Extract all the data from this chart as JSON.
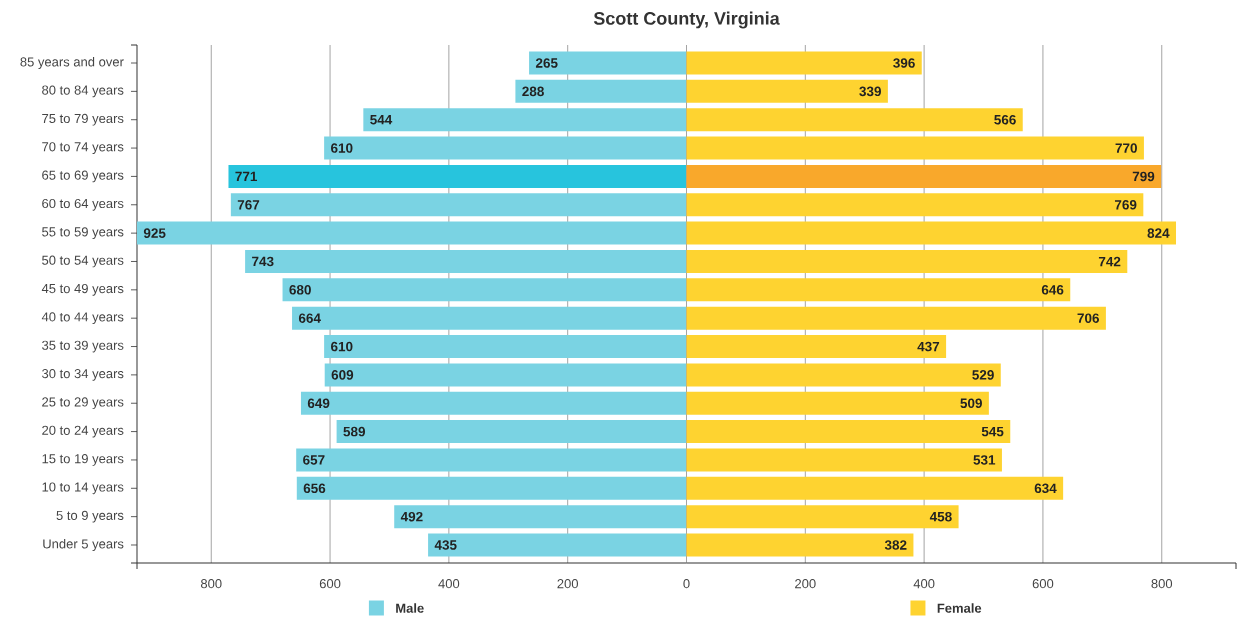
{
  "chart_data": [
    {
      "type": "bar",
      "orientation": "horizontal",
      "title": "Scott County, Virginia",
      "categories": [
        "85 years and over",
        "80 to 84 years",
        "75 to 79 years",
        "70 to 74 years",
        "65 to 69 years",
        "60 to 64 years",
        "55 to 59 years",
        "50 to 54 years",
        "45 to 49 years",
        "40 to 44 years",
        "35 to 39 years",
        "30 to 34 years",
        "25 to 29 years",
        "20 to 24 years",
        "15 to 19 years",
        "10 to 14 years",
        "5 to 9 years",
        "Under 5 years"
      ],
      "series": [
        {
          "name": "Male",
          "color": "#7ad3e3",
          "colors": [
            "#7ad3e3",
            "#7ad3e3",
            "#7ad3e3",
            "#7ad3e3",
            "#27c4dd",
            "#7ad3e3",
            "#7ad3e3",
            "#7ad3e3",
            "#7ad3e3",
            "#7ad3e3",
            "#7ad3e3",
            "#7ad3e3",
            "#7ad3e3",
            "#7ad3e3",
            "#7ad3e3",
            "#7ad3e3",
            "#7ad3e3",
            "#7ad3e3"
          ],
          "values": [
            265,
            288,
            544,
            610,
            771,
            767,
            925,
            743,
            680,
            664,
            610,
            609,
            649,
            589,
            657,
            656,
            492,
            435
          ]
        }
      ],
      "xlim": [
        925,
        0
      ],
      "xticks": [
        800,
        600,
        400,
        200
      ],
      "data_labels": true,
      "grid": "x",
      "legend": "bottom"
    },
    {
      "type": "bar",
      "orientation": "horizontal",
      "categories": [
        null,
        null,
        null,
        null,
        null,
        null,
        null,
        null,
        null,
        null,
        null,
        null,
        null,
        null,
        null,
        null,
        null,
        null
      ],
      "series": [
        {
          "name": "Female",
          "color": "#fed330",
          "colors": [
            "#fed330",
            "#fed330",
            "#fed330",
            "#fed330",
            "#f9a82b",
            "#fed330",
            "#fed330",
            "#fed330",
            "#fed330",
            "#fed330",
            "#fed330",
            "#fed330",
            "#fed330",
            "#fed330",
            "#fed330",
            "#fed330",
            "#fed330",
            "#fed330"
          ],
          "values": [
            396,
            339,
            566,
            770,
            799,
            769,
            824,
            742,
            646,
            706,
            437,
            529,
            509,
            545,
            531,
            634,
            458,
            382
          ]
        }
      ],
      "xlim": [
        0,
        925
      ],
      "xticks": [
        0,
        200,
        400,
        600,
        800
      ],
      "data_labels": true,
      "grid": "x",
      "legend": "bottom",
      "tick_labels": "x"
    }
  ]
}
